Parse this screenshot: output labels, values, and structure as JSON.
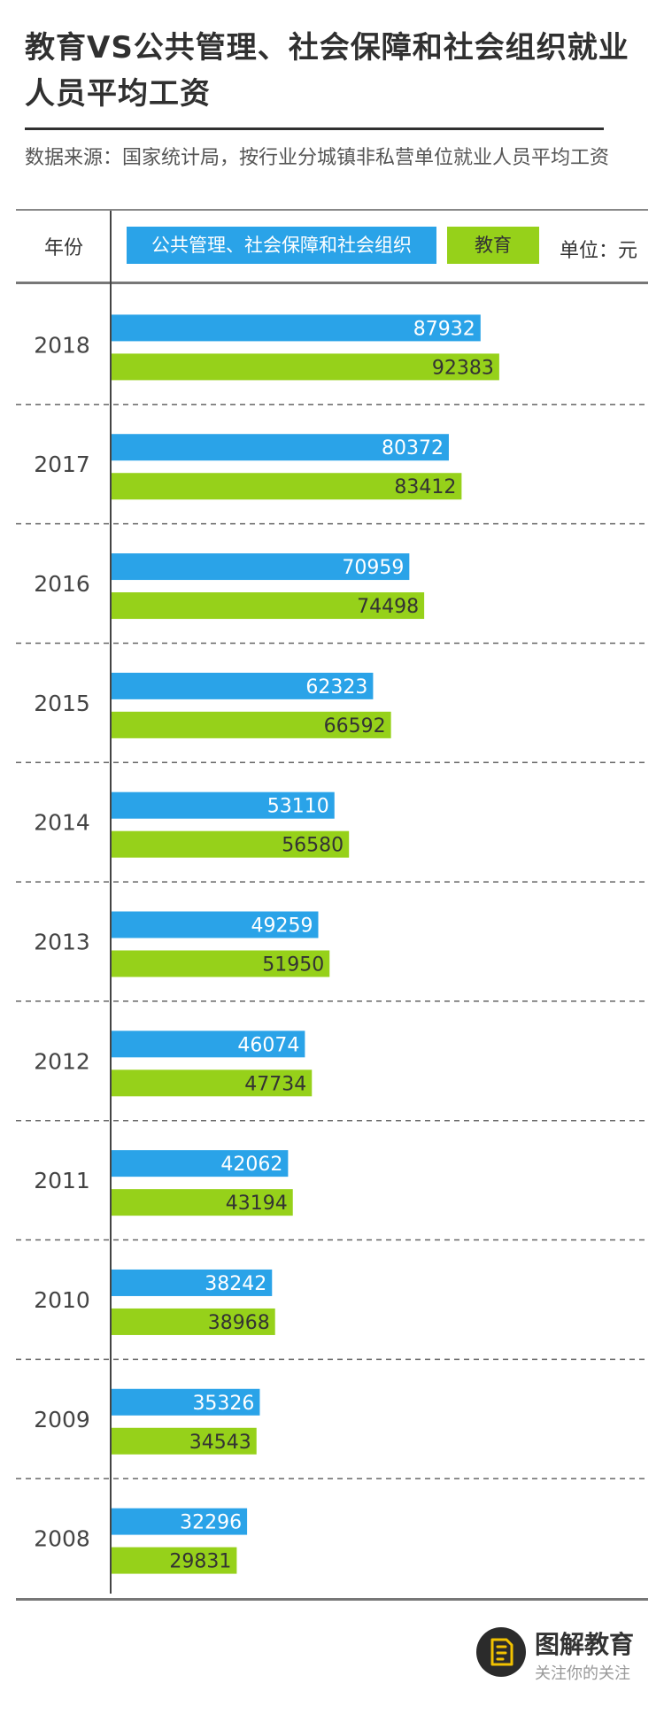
{
  "title": "教育VS公共管理、社会保障和社会组织就业人员平均工资",
  "source": "数据来源：国家统计局，按行业分城镇非私营单位就业人员平均工资",
  "header": {
    "year_label": "年份",
    "unit": "单位：元"
  },
  "brand": {
    "name": "图解教育",
    "tagline": "关注你的关注"
  },
  "colors": {
    "public_admin": "#2aa3e8",
    "education": "#96d11a"
  },
  "chart_data": {
    "type": "bar",
    "orientation": "horizontal",
    "categories": [
      "2018",
      "2017",
      "2016",
      "2015",
      "2014",
      "2013",
      "2012",
      "2011",
      "2010",
      "2009",
      "2008"
    ],
    "series": [
      {
        "name": "公共管理、社会保障和社会组织",
        "values": [
          87932,
          80372,
          70959,
          62323,
          53110,
          49259,
          46074,
          42062,
          38242,
          35326,
          32296
        ]
      },
      {
        "name": "教育",
        "values": [
          92383,
          83412,
          74498,
          66592,
          56580,
          51950,
          47734,
          43194,
          38968,
          34543,
          29831
        ]
      }
    ],
    "unit": "单位：元",
    "legend_position": "top",
    "grid": false
  }
}
